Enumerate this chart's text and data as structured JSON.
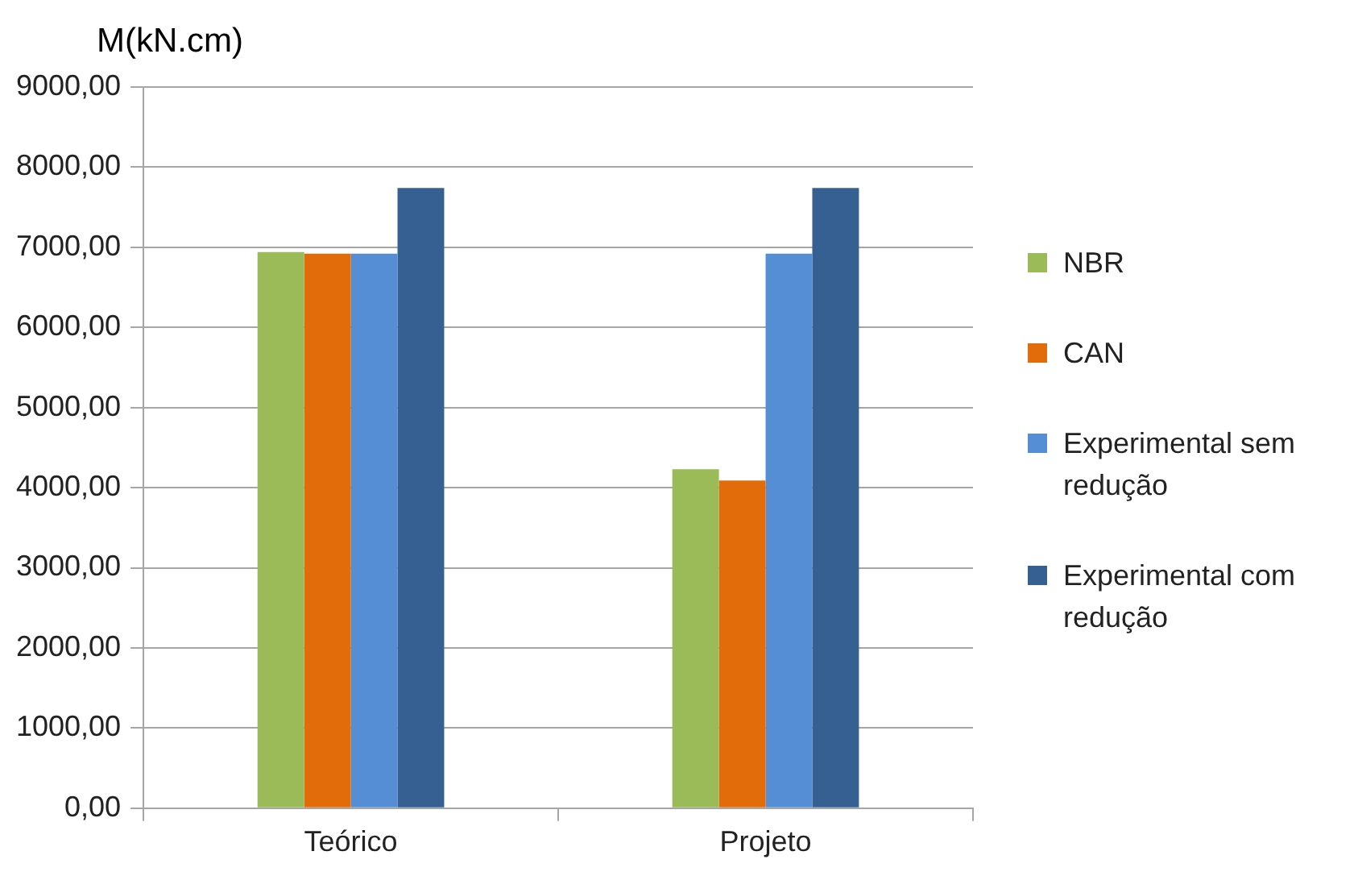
{
  "chart_data": {
    "type": "bar",
    "ylabel": "M(kN.cm)",
    "categories": [
      "Teórico",
      "Projeto"
    ],
    "series": [
      {
        "name": "NBR",
        "color": "#9bbb59",
        "values": [
          6940,
          4230
        ]
      },
      {
        "name": "CAN",
        "color": "#e36c0a",
        "values": [
          6920,
          4090
        ]
      },
      {
        "name": "Experimental sem redução",
        "color": "#558ed5",
        "values": [
          6920,
          6920
        ]
      },
      {
        "name": "Experimental com redução",
        "color": "#376092",
        "values": [
          7740,
          7740
        ]
      }
    ],
    "ylim": [
      0,
      9000
    ],
    "yticks": [
      {
        "value": 0,
        "label": "0,00"
      },
      {
        "value": 1000,
        "label": "1000,00"
      },
      {
        "value": 2000,
        "label": "2000,00"
      },
      {
        "value": 3000,
        "label": "3000,00"
      },
      {
        "value": 4000,
        "label": "4000,00"
      },
      {
        "value": 5000,
        "label": "5000,00"
      },
      {
        "value": 6000,
        "label": "6000,00"
      },
      {
        "value": 7000,
        "label": "7000,00"
      },
      {
        "value": 8000,
        "label": "8000,00"
      },
      {
        "value": 9000,
        "label": "9000,00"
      }
    ],
    "grid": "y",
    "legend": "right"
  }
}
